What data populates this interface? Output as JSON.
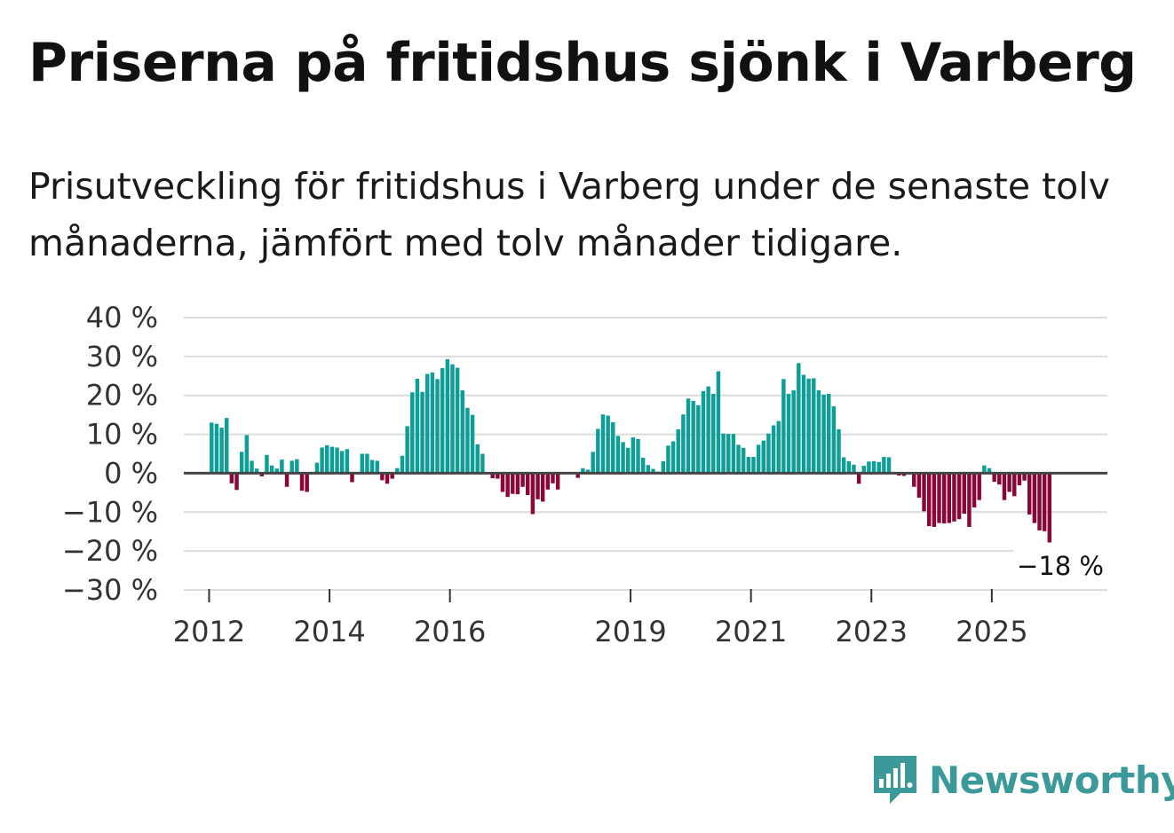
{
  "title": "Priserna på fritidshus sjönk i Varberg",
  "subtitle": "Prisutveckling för fritidshus i Varberg under de senaste tolv månaderna, jämfört med tolv månader tidigare.",
  "brand": {
    "name": "Newsworthy",
    "icon": "newsworthy-logo-icon",
    "color": "#3b9a99"
  },
  "colors": {
    "positive": "#0e9e98",
    "negative": "#8a0538",
    "grid": "#dcdcdc",
    "zero": "#444444"
  },
  "chart_data": {
    "type": "bar",
    "title": "Priserna på fritidshus sjönk i Varberg",
    "xlabel": "",
    "ylabel": "",
    "ylim": [
      -30,
      40
    ],
    "y_ticks": [
      40,
      30,
      20,
      10,
      0,
      -10,
      -20,
      -30
    ],
    "y_tick_labels": [
      "40 %",
      "30 %",
      "20 %",
      "10 %",
      "0 %",
      "−10 %",
      "−20 %",
      "−30 %"
    ],
    "x_range": [
      2011.58,
      2026.92
    ],
    "x_ticks": [
      2012,
      2014,
      2016,
      2019,
      2021,
      2023,
      2025
    ],
    "x_tick_labels": [
      "2012",
      "2014",
      "2016",
      "2019",
      "2021",
      "2023",
      "2025"
    ],
    "start": "2012-01",
    "frequency": "monthly",
    "grid": true,
    "last_value_label": "−18 %",
    "values": [
      13,
      12.7,
      11.7,
      14.2,
      -2.6,
      -4.3,
      5.5,
      9.8,
      3.2,
      1.2,
      -0.8,
      4.7,
      2,
      1.2,
      3.5,
      -3.5,
      3.2,
      3.6,
      -4.5,
      -4.8,
      0,
      2.7,
      6.6,
      7.2,
      6.8,
      6.6,
      5.7,
      6.2,
      -2.3,
      0,
      5,
      5,
      3.4,
      3.2,
      -1.8,
      -2.7,
      -1.4,
      1.3,
      4.5,
      12.1,
      20.8,
      24.3,
      20.9,
      25.5,
      25.9,
      24.2,
      27,
      29.3,
      28,
      27.1,
      21.3,
      16.8,
      15,
      7.4,
      5,
      0,
      -1.3,
      -1.4,
      -4.8,
      -6.1,
      -5.3,
      -5.4,
      -3.5,
      -5.6,
      -10.5,
      -6.7,
      -7.3,
      -4.2,
      -2.6,
      -4.2,
      0,
      0,
      0,
      -1.2,
      1.3,
      0.9,
      5.5,
      11.4,
      15.1,
      14.8,
      13.1,
      9.6,
      8,
      6.5,
      9.2,
      8.8,
      4,
      2.1,
      1.1,
      0.4,
      3.1,
      7.1,
      8.2,
      11.3,
      15.1,
      19.2,
      18.6,
      17.5,
      21.1,
      22.3,
      20.4,
      26.2,
      10.2,
      10.1,
      10.1,
      7.3,
      6.5,
      4.2,
      4.2,
      7.3,
      8.4,
      10.2,
      12.3,
      13.4,
      24.2,
      20.4,
      21.3,
      28.3,
      25.3,
      24.3,
      24.4,
      21.3,
      20.2,
      20.4,
      17.2,
      11.3,
      4.1,
      3.1,
      2.2,
      -2.7,
      1.9,
      3,
      3.1,
      2.9,
      4.2,
      4.1,
      0,
      -0.6,
      -0.7,
      0,
      -3.5,
      -6.3,
      -9.8,
      -13.6,
      -13.8,
      -12.8,
      -12.9,
      -12.8,
      -12.4,
      -11.8,
      -10.4,
      -13.8,
      -8.8,
      -6.9,
      2,
      1.3,
      -2.2,
      -2.9,
      -6.9,
      -4.8,
      -5.9,
      -3.1,
      -1.9,
      -10.6,
      -12.8,
      -14.7,
      -14.9,
      -17.8
    ]
  }
}
